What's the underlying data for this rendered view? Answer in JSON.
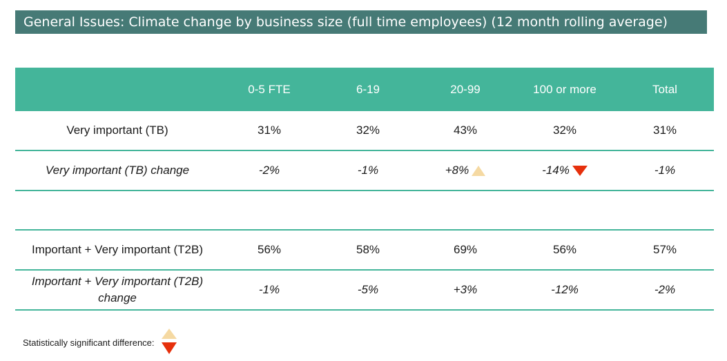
{
  "title": "General Issues: Climate change by business size (full time employees) (12 month rolling average)",
  "chart_data": {
    "type": "table",
    "columns": [
      "",
      "0-5 FTE",
      "6-19",
      "20-99",
      "100 or more",
      "Total"
    ],
    "rows": [
      {
        "label": "Very important (TB)",
        "italic": false,
        "values": [
          "31%",
          "32%",
          "43%",
          "32%",
          "31%"
        ],
        "markers": [
          "",
          "",
          "",
          "",
          ""
        ]
      },
      {
        "label": "Very important (TB) change",
        "italic": true,
        "values": [
          "-2%",
          "-1%",
          "+8%",
          "-14%",
          "-1%"
        ],
        "markers": [
          "",
          "",
          "up",
          "down",
          ""
        ]
      },
      {
        "label": "Important + Very important (T2B)",
        "italic": false,
        "values": [
          "56%",
          "58%",
          "69%",
          "56%",
          "57%"
        ],
        "markers": [
          "",
          "",
          "",
          "",
          ""
        ]
      },
      {
        "label": "Important + Very important (T2B) change",
        "italic": true,
        "values": [
          "-1%",
          "-5%",
          "+3%",
          "-12%",
          "-2%"
        ],
        "markers": [
          "",
          "",
          "",
          "",
          ""
        ]
      }
    ],
    "marker_colors": {
      "up": "#f5d9a2",
      "down": "#e6300c"
    },
    "header_color": "#44b59a"
  },
  "legend": {
    "label": "Statistically significant difference:",
    "icons": [
      "triangle-up-icon",
      "triangle-down-icon"
    ]
  },
  "colors": {
    "title_bar": "#467a76",
    "header": "#44b59a",
    "up": "#f5d9a2",
    "down": "#e6300c"
  }
}
